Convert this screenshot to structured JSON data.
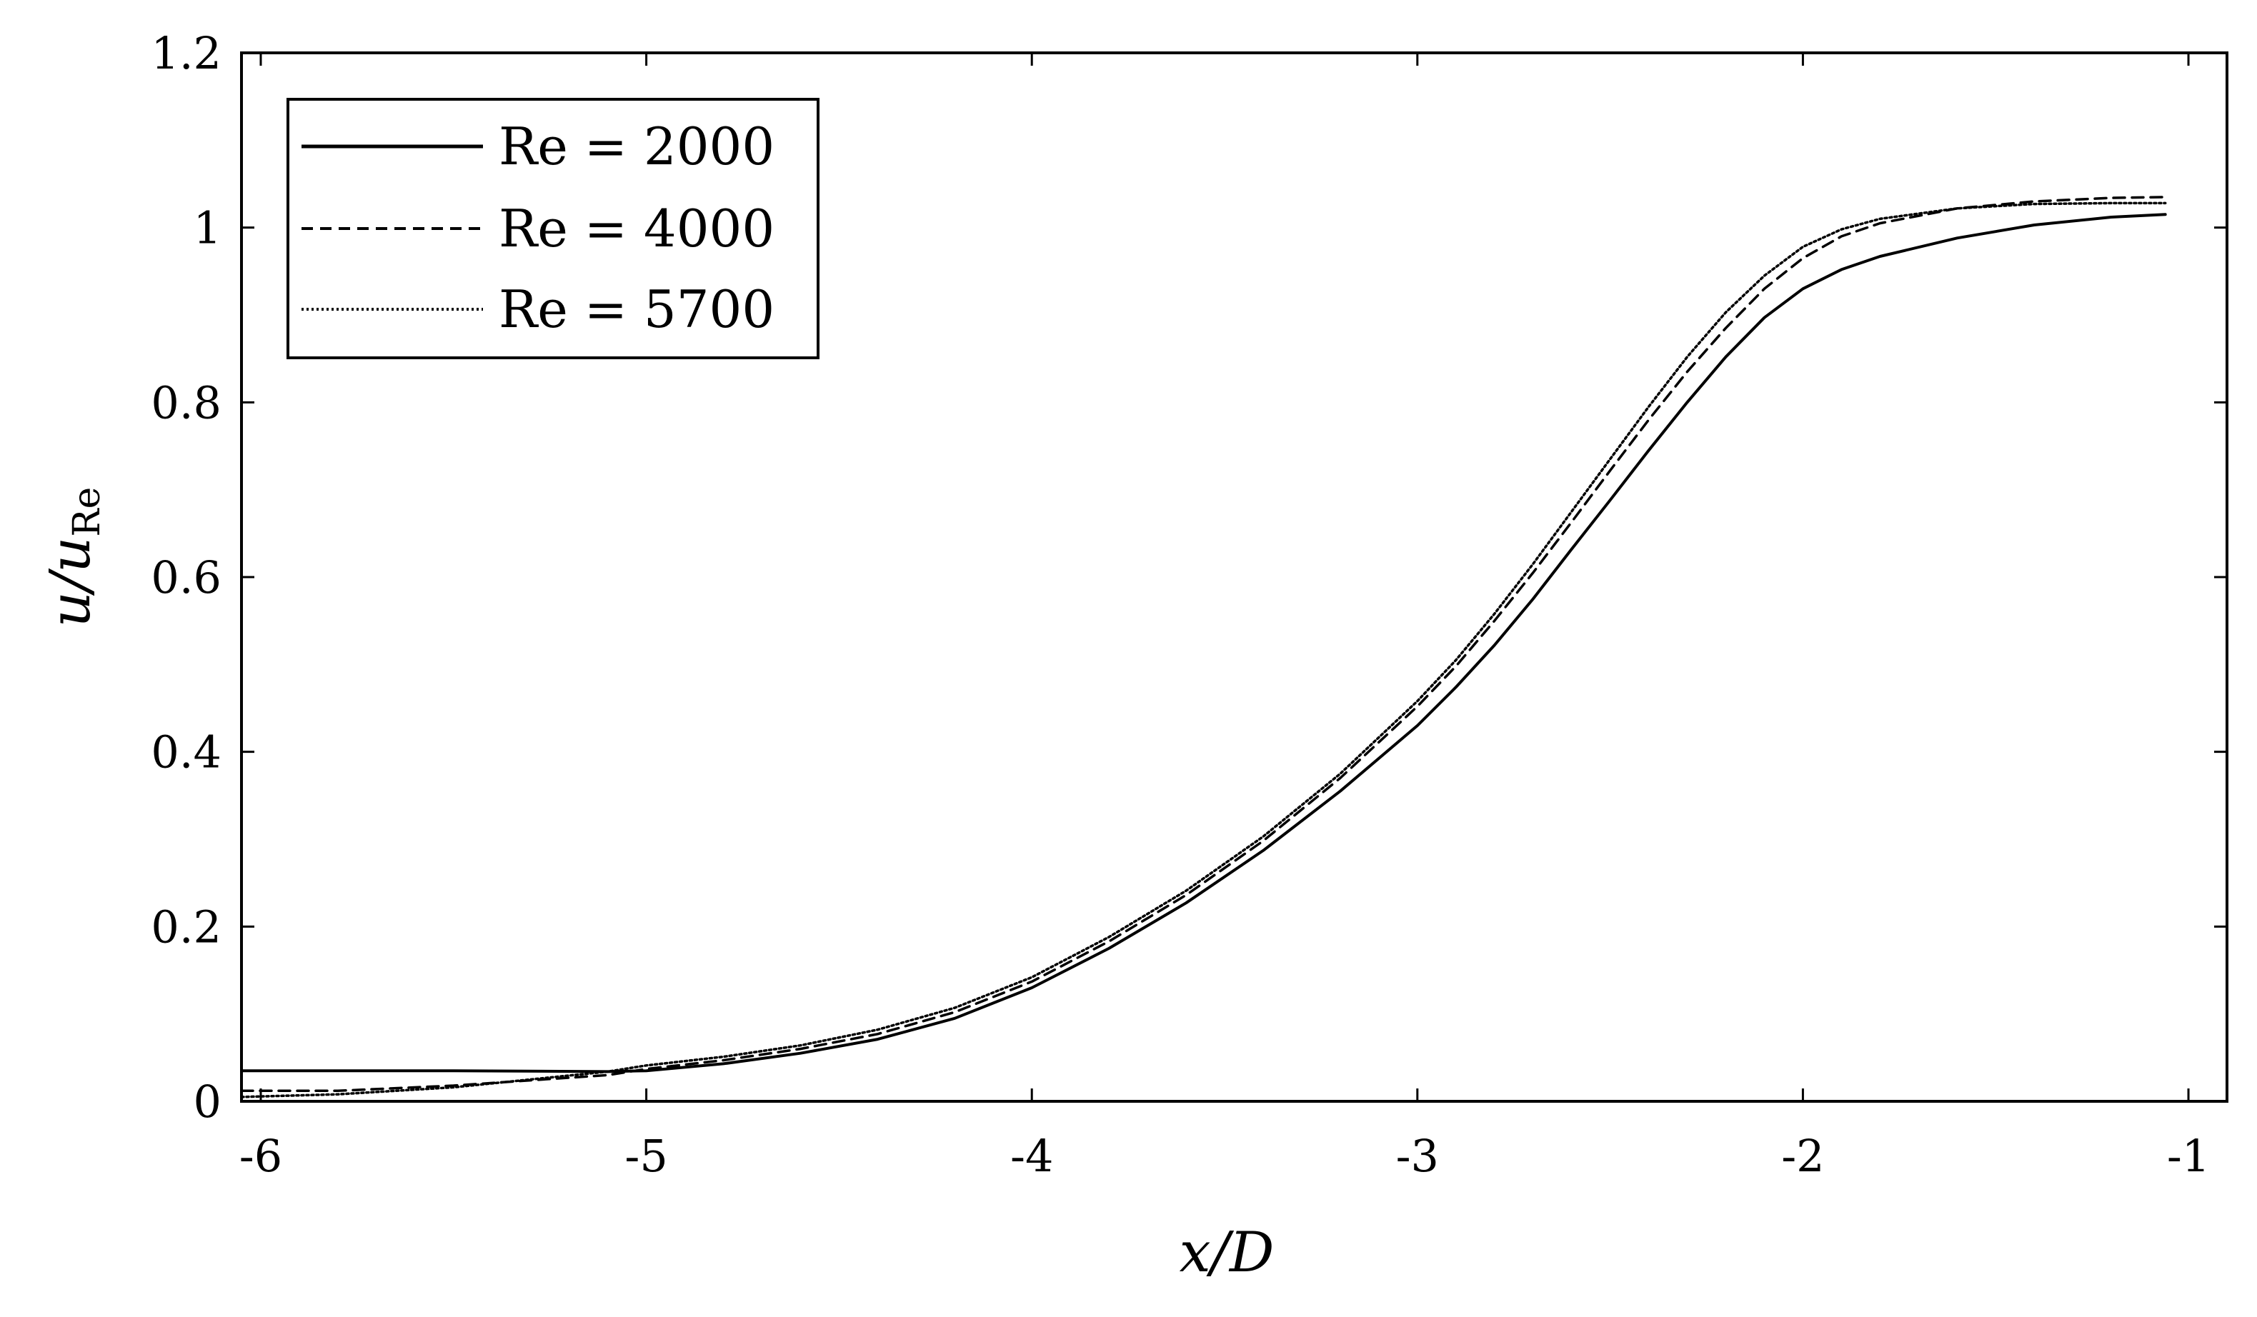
{
  "chart_data": {
    "type": "line",
    "title": "",
    "xlabel": "x/D",
    "ylabel": "u/u",
    "ylabel_subscript": "Re",
    "xlim": [
      -6.05,
      -0.9
    ],
    "ylim": [
      0,
      1.2
    ],
    "xticks": [
      -6,
      -5,
      -4,
      -3,
      -2,
      -1
    ],
    "xtick_labels": [
      "-6",
      "-5",
      "-4",
      "-3",
      "-2",
      "-1"
    ],
    "yticks": [
      0,
      0.2,
      0.4,
      0.6,
      0.8,
      1,
      1.2
    ],
    "ytick_labels": [
      "0",
      "0.2",
      "0.4",
      "0.6",
      "0.8",
      "1",
      "1.2"
    ],
    "grid": false,
    "legend_position": "top-left",
    "series": [
      {
        "name": "Re = 2000",
        "style": "solid",
        "color": "#000000",
        "x": [
          -6.05,
          -5.5,
          -5.1,
          -5.0,
          -4.8,
          -4.6,
          -4.4,
          -4.2,
          -4.0,
          -3.8,
          -3.6,
          -3.4,
          -3.2,
          -3.0,
          -2.9,
          -2.8,
          -2.7,
          -2.6,
          -2.5,
          -2.4,
          -2.3,
          -2.2,
          -2.1,
          -2.0,
          -1.9,
          -1.8,
          -1.6,
          -1.4,
          -1.2,
          -1.06
        ],
        "y": [
          0.035,
          0.035,
          0.034,
          0.035,
          0.043,
          0.055,
          0.071,
          0.095,
          0.13,
          0.175,
          0.227,
          0.287,
          0.355,
          0.43,
          0.474,
          0.522,
          0.575,
          0.632,
          0.688,
          0.745,
          0.8,
          0.852,
          0.897,
          0.93,
          0.952,
          0.967,
          0.988,
          1.003,
          1.012,
          1.015
        ]
      },
      {
        "name": "Re = 4000",
        "style": "dashed",
        "color": "#000000",
        "x": [
          -6.05,
          -5.8,
          -5.5,
          -5.3,
          -5.1,
          -5.0,
          -4.8,
          -4.6,
          -4.4,
          -4.2,
          -4.0,
          -3.8,
          -3.6,
          -3.4,
          -3.2,
          -3.0,
          -2.9,
          -2.8,
          -2.7,
          -2.6,
          -2.5,
          -2.4,
          -2.3,
          -2.2,
          -2.1,
          -2.0,
          -1.9,
          -1.8,
          -1.6,
          -1.4,
          -1.2,
          -1.06
        ],
        "y": [
          0.012,
          0.012,
          0.018,
          0.024,
          0.03,
          0.037,
          0.047,
          0.06,
          0.077,
          0.102,
          0.137,
          0.183,
          0.236,
          0.298,
          0.37,
          0.452,
          0.498,
          0.55,
          0.605,
          0.663,
          0.722,
          0.78,
          0.835,
          0.885,
          0.93,
          0.965,
          0.99,
          1.005,
          1.022,
          1.03,
          1.034,
          1.035
        ]
      },
      {
        "name": "Re = 5700",
        "style": "dotted",
        "color": "#000000",
        "x": [
          -6.05,
          -5.8,
          -5.5,
          -5.3,
          -5.1,
          -5.0,
          -4.8,
          -4.6,
          -4.4,
          -4.2,
          -4.0,
          -3.8,
          -3.6,
          -3.4,
          -3.2,
          -3.0,
          -2.9,
          -2.8,
          -2.7,
          -2.6,
          -2.5,
          -2.4,
          -2.3,
          -2.2,
          -2.1,
          -2.0,
          -1.9,
          -1.8,
          -1.6,
          -1.4,
          -1.2,
          -1.06
        ],
        "y": [
          0.005,
          0.008,
          0.016,
          0.025,
          0.034,
          0.041,
          0.051,
          0.064,
          0.082,
          0.107,
          0.142,
          0.188,
          0.241,
          0.303,
          0.375,
          0.458,
          0.505,
          0.558,
          0.615,
          0.675,
          0.735,
          0.795,
          0.852,
          0.903,
          0.945,
          0.978,
          0.998,
          1.01,
          1.022,
          1.027,
          1.028,
          1.028
        ]
      }
    ]
  }
}
